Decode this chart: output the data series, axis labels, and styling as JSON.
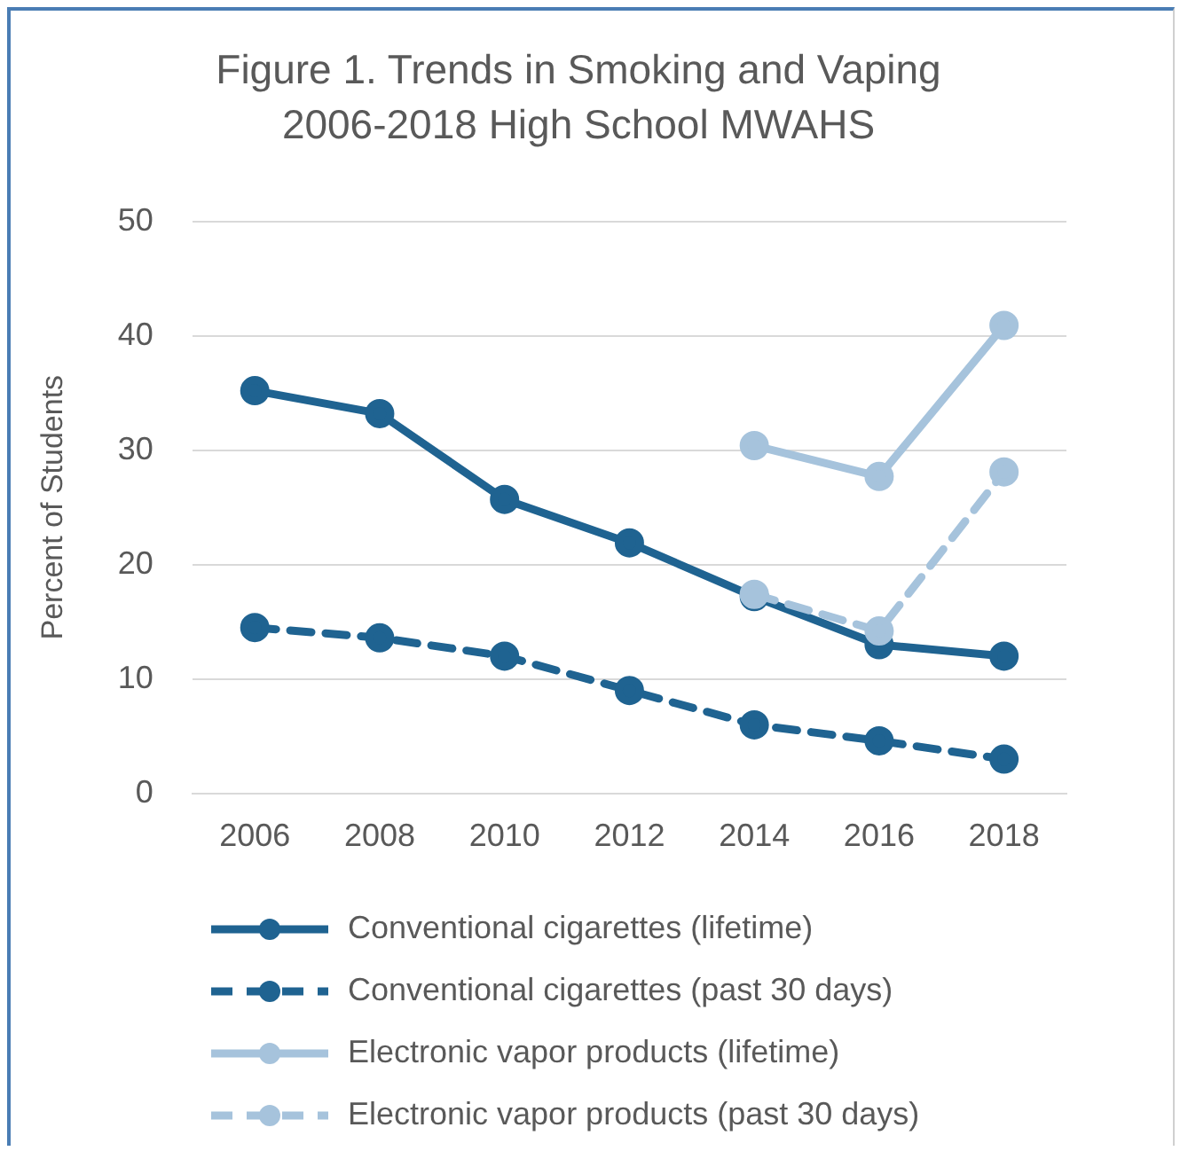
{
  "chart_data": {
    "type": "line",
    "title": "Figure 1. Trends in Smoking and Vaping\n2006-2018 High School MWAHS",
    "ylabel": "Percent of Students",
    "categories": [
      "2006",
      "2008",
      "2010",
      "2012",
      "2014",
      "2016",
      "2018"
    ],
    "series": [
      {
        "name": "Conventional cigarettes (lifetime)",
        "color": "#1f6391",
        "line_style": "solid",
        "values": [
          35.2,
          33.2,
          25.7,
          21.9,
          17.2,
          13.0,
          12.0
        ]
      },
      {
        "name": "Conventional cigarettes (past 30 days)",
        "color": "#1f6391",
        "line_style": "dashed",
        "values": [
          14.5,
          13.6,
          12.0,
          9.0,
          6.0,
          4.6,
          3.0
        ]
      },
      {
        "name": "Electronic vapor products (lifetime)",
        "color": "#a6c3dc",
        "line_style": "solid",
        "values": [
          null,
          null,
          null,
          null,
          30.4,
          27.7,
          40.9
        ]
      },
      {
        "name": "Electronic vapor products (past 30 days)",
        "color": "#a6c3dc",
        "line_style": "dashed",
        "values": [
          null,
          null,
          null,
          null,
          17.4,
          14.2,
          28.1
        ]
      }
    ],
    "ylim": [
      0,
      50
    ],
    "yticks": [
      0,
      10,
      20,
      30,
      40,
      50
    ],
    "grid": "y",
    "legend": "bottom",
    "marker": "circle"
  }
}
